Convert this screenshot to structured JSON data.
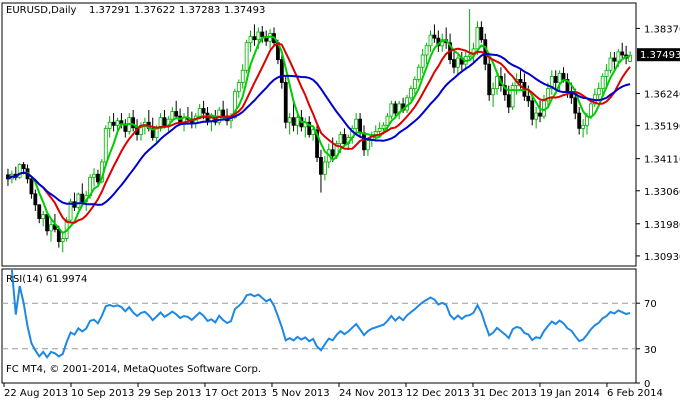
{
  "chart_data": [
    {
      "type": "candlestick",
      "symbol": "EURUSD,Daily",
      "ohlc_header": [
        "1.37291",
        "1.37622",
        "1.37283",
        "1.37493"
      ],
      "current_price_label": "1.37493",
      "y_ticks": [
        "1.38370",
        "1.37493",
        "1.36240",
        "1.35190",
        "1.34110",
        "1.33060",
        "1.31980",
        "1.30930"
      ],
      "ylim": [
        1.306,
        1.392
      ],
      "bars": 160,
      "candles": [
        [
          1.3358,
          1.3378,
          1.3322,
          1.3345
        ],
        [
          1.3345,
          1.3372,
          1.333,
          1.336
        ],
        [
          1.336,
          1.3385,
          1.334,
          1.335
        ],
        [
          1.335,
          1.3396,
          1.3345,
          1.3392
        ],
        [
          1.3392,
          1.34,
          1.336,
          1.3378
        ],
        [
          1.3378,
          1.3392,
          1.333,
          1.3345
        ],
        [
          1.3345,
          1.3352,
          1.328,
          1.3296
        ],
        [
          1.3296,
          1.331,
          1.324,
          1.326
        ],
        [
          1.326,
          1.3262,
          1.32,
          1.3215
        ],
        [
          1.3215,
          1.324,
          1.319,
          1.3228
        ],
        [
          1.3228,
          1.3235,
          1.316,
          1.3175
        ],
        [
          1.3175,
          1.321,
          1.314,
          1.3195
        ],
        [
          1.3195,
          1.323,
          1.317,
          1.318
        ],
        [
          1.318,
          1.3192,
          1.312,
          1.314
        ],
        [
          1.314,
          1.3165,
          1.3105,
          1.315
        ],
        [
          1.315,
          1.322,
          1.314,
          1.321
        ],
        [
          1.321,
          1.328,
          1.32,
          1.327
        ],
        [
          1.327,
          1.33,
          1.324,
          1.3252
        ],
        [
          1.3252,
          1.33,
          1.3245,
          1.3295
        ],
        [
          1.3295,
          1.333,
          1.326,
          1.327
        ],
        [
          1.327,
          1.3305,
          1.324,
          1.329
        ],
        [
          1.329,
          1.336,
          1.328,
          1.335
        ],
        [
          1.335,
          1.338,
          1.332,
          1.336
        ],
        [
          1.336,
          1.3375,
          1.332,
          1.3335
        ],
        [
          1.3335,
          1.341,
          1.333,
          1.34
        ],
        [
          1.34,
          1.352,
          1.339,
          1.351
        ],
        [
          1.351,
          1.355,
          1.348,
          1.353
        ],
        [
          1.353,
          1.356,
          1.35,
          1.352
        ],
        [
          1.352,
          1.3545,
          1.349,
          1.3535
        ],
        [
          1.3535,
          1.356,
          1.351,
          1.3525
        ],
        [
          1.3525,
          1.354,
          1.348,
          1.35
        ],
        [
          1.35,
          1.356,
          1.349,
          1.3545
        ],
        [
          1.3545,
          1.357,
          1.35,
          1.3512
        ],
        [
          1.3512,
          1.354,
          1.347,
          1.349
        ],
        [
          1.349,
          1.353,
          1.347,
          1.352
        ],
        [
          1.352,
          1.3545,
          1.349,
          1.353
        ],
        [
          1.353,
          1.357,
          1.35,
          1.351
        ],
        [
          1.351,
          1.3545,
          1.347,
          1.348
        ],
        [
          1.348,
          1.352,
          1.346,
          1.351
        ],
        [
          1.351,
          1.356,
          1.35,
          1.3545
        ],
        [
          1.3545,
          1.357,
          1.351,
          1.352
        ],
        [
          1.352,
          1.355,
          1.35,
          1.354
        ],
        [
          1.354,
          1.358,
          1.353,
          1.3565
        ],
        [
          1.3565,
          1.36,
          1.354,
          1.355
        ],
        [
          1.355,
          1.3575,
          1.352,
          1.353
        ],
        [
          1.353,
          1.356,
          1.35,
          1.3545
        ],
        [
          1.3545,
          1.358,
          1.353,
          1.354
        ],
        [
          1.354,
          1.3565,
          1.351,
          1.3525
        ],
        [
          1.3525,
          1.356,
          1.351,
          1.355
        ],
        [
          1.355,
          1.359,
          1.354,
          1.3575
        ],
        [
          1.3575,
          1.36,
          1.354,
          1.356
        ],
        [
          1.356,
          1.358,
          1.352,
          1.3535
        ],
        [
          1.3535,
          1.356,
          1.35,
          1.3545
        ],
        [
          1.3545,
          1.357,
          1.352,
          1.353
        ],
        [
          1.353,
          1.358,
          1.352,
          1.357
        ],
        [
          1.357,
          1.36,
          1.354,
          1.355
        ],
        [
          1.355,
          1.3575,
          1.352,
          1.3535
        ],
        [
          1.3535,
          1.356,
          1.351,
          1.3545
        ],
        [
          1.3545,
          1.364,
          1.354,
          1.363
        ],
        [
          1.363,
          1.367,
          1.361,
          1.366
        ],
        [
          1.366,
          1.372,
          1.364,
          1.37
        ],
        [
          1.37,
          1.38,
          1.369,
          1.379
        ],
        [
          1.379,
          1.383,
          1.376,
          1.381
        ],
        [
          1.381,
          1.385,
          1.378,
          1.38
        ],
        [
          1.38,
          1.384,
          1.377,
          1.3825
        ],
        [
          1.3825,
          1.3845,
          1.379,
          1.381
        ],
        [
          1.381,
          1.383,
          1.378,
          1.3795
        ],
        [
          1.3795,
          1.3835,
          1.377,
          1.382
        ],
        [
          1.382,
          1.384,
          1.378,
          1.379
        ],
        [
          1.379,
          1.38,
          1.372,
          1.3735
        ],
        [
          1.3735,
          1.375,
          1.364,
          1.366
        ],
        [
          1.366,
          1.368,
          1.351,
          1.353
        ],
        [
          1.353,
          1.356,
          1.349,
          1.3545
        ],
        [
          1.3545,
          1.36,
          1.35,
          1.352
        ],
        [
          1.352,
          1.356,
          1.349,
          1.3545
        ],
        [
          1.3545,
          1.357,
          1.35,
          1.3515
        ],
        [
          1.3515,
          1.3545,
          1.348,
          1.353
        ],
        [
          1.353,
          1.355,
          1.348,
          1.349
        ],
        [
          1.349,
          1.352,
          1.347,
          1.3505
        ],
        [
          1.3505,
          1.352,
          1.34,
          1.3415
        ],
        [
          1.3415,
          1.344,
          1.33,
          1.336
        ],
        [
          1.336,
          1.342,
          1.334,
          1.34
        ],
        [
          1.34,
          1.346,
          1.338,
          1.344
        ],
        [
          1.344,
          1.348,
          1.34,
          1.342
        ],
        [
          1.342,
          1.347,
          1.341,
          1.346
        ],
        [
          1.346,
          1.35,
          1.343,
          1.349
        ],
        [
          1.349,
          1.351,
          1.345,
          1.346
        ],
        [
          1.346,
          1.349,
          1.344,
          1.348
        ],
        [
          1.348,
          1.352,
          1.346,
          1.351
        ],
        [
          1.351,
          1.356,
          1.349,
          1.354
        ],
        [
          1.354,
          1.356,
          1.348,
          1.3495
        ],
        [
          1.3495,
          1.352,
          1.342,
          1.344
        ],
        [
          1.344,
          1.348,
          1.342,
          1.347
        ],
        [
          1.347,
          1.35,
          1.345,
          1.349
        ],
        [
          1.349,
          1.352,
          1.347,
          1.35
        ],
        [
          1.35,
          1.353,
          1.348,
          1.351
        ],
        [
          1.351,
          1.353,
          1.349,
          1.352
        ],
        [
          1.352,
          1.356,
          1.35,
          1.355
        ],
        [
          1.355,
          1.36,
          1.354,
          1.359
        ],
        [
          1.359,
          1.36,
          1.355,
          1.356
        ],
        [
          1.356,
          1.36,
          1.354,
          1.359
        ],
        [
          1.359,
          1.361,
          1.356,
          1.357
        ],
        [
          1.357,
          1.362,
          1.356,
          1.361
        ],
        [
          1.361,
          1.365,
          1.36,
          1.364
        ],
        [
          1.364,
          1.368,
          1.362,
          1.367
        ],
        [
          1.367,
          1.372,
          1.366,
          1.371
        ],
        [
          1.371,
          1.377,
          1.369,
          1.375
        ],
        [
          1.375,
          1.379,
          1.372,
          1.378
        ],
        [
          1.378,
          1.383,
          1.376,
          1.3815
        ],
        [
          1.3815,
          1.385,
          1.379,
          1.3805
        ],
        [
          1.3805,
          1.383,
          1.376,
          1.378
        ],
        [
          1.378,
          1.382,
          1.376,
          1.38
        ],
        [
          1.38,
          1.384,
          1.377,
          1.379
        ],
        [
          1.379,
          1.382,
          1.372,
          1.3735
        ],
        [
          1.3735,
          1.376,
          1.369,
          1.371
        ],
        [
          1.371,
          1.375,
          1.368,
          1.374
        ],
        [
          1.374,
          1.376,
          1.37,
          1.372
        ],
        [
          1.372,
          1.376,
          1.37,
          1.3745
        ],
        [
          1.3745,
          1.39,
          1.373,
          1.375
        ],
        [
          1.375,
          1.379,
          1.372,
          1.377
        ],
        [
          1.377,
          1.386,
          1.375,
          1.384
        ],
        [
          1.384,
          1.386,
          1.379,
          1.38
        ],
        [
          1.38,
          1.382,
          1.37,
          1.372
        ],
        [
          1.372,
          1.374,
          1.36,
          1.362
        ],
        [
          1.362,
          1.366,
          1.358,
          1.364
        ],
        [
          1.364,
          1.37,
          1.362,
          1.368
        ],
        [
          1.368,
          1.371,
          1.363,
          1.365
        ],
        [
          1.365,
          1.369,
          1.36,
          1.362
        ],
        [
          1.362,
          1.365,
          1.356,
          1.358
        ],
        [
          1.358,
          1.366,
          1.357,
          1.365
        ],
        [
          1.365,
          1.369,
          1.362,
          1.367
        ],
        [
          1.367,
          1.37,
          1.364,
          1.366
        ],
        [
          1.366,
          1.369,
          1.36,
          1.3615
        ],
        [
          1.3615,
          1.365,
          1.358,
          1.36
        ],
        [
          1.36,
          1.362,
          1.352,
          1.354
        ],
        [
          1.354,
          1.358,
          1.351,
          1.356
        ],
        [
          1.356,
          1.36,
          1.353,
          1.355
        ],
        [
          1.355,
          1.362,
          1.354,
          1.36
        ],
        [
          1.36,
          1.366,
          1.358,
          1.364
        ],
        [
          1.364,
          1.37,
          1.362,
          1.368
        ],
        [
          1.368,
          1.37,
          1.364,
          1.366
        ],
        [
          1.366,
          1.37,
          1.363,
          1.369
        ],
        [
          1.369,
          1.371,
          1.366,
          1.367
        ],
        [
          1.367,
          1.369,
          1.361,
          1.363
        ],
        [
          1.363,
          1.366,
          1.359,
          1.361
        ],
        [
          1.361,
          1.364,
          1.354,
          1.356
        ],
        [
          1.356,
          1.358,
          1.349,
          1.351
        ],
        [
          1.351,
          1.354,
          1.348,
          1.352
        ],
        [
          1.352,
          1.356,
          1.349,
          1.355
        ],
        [
          1.355,
          1.36,
          1.354,
          1.359
        ],
        [
          1.359,
          1.364,
          1.358,
          1.362
        ],
        [
          1.362,
          1.366,
          1.36,
          1.364
        ],
        [
          1.364,
          1.369,
          1.362,
          1.368
        ],
        [
          1.368,
          1.372,
          1.365,
          1.37
        ],
        [
          1.37,
          1.376,
          1.369,
          1.374
        ],
        [
          1.374,
          1.376,
          1.37,
          1.373
        ],
        [
          1.373,
          1.377,
          1.371,
          1.376
        ],
        [
          1.376,
          1.379,
          1.374,
          1.375
        ],
        [
          1.375,
          1.378,
          1.372,
          1.374
        ],
        [
          1.3729,
          1.3762,
          1.3728,
          1.3749
        ]
      ],
      "indicators": [
        {
          "color": "#00cc00",
          "period": 5
        },
        {
          "color": "#dd0000",
          "period": 10
        },
        {
          "color": "#0000cc",
          "period": 20
        }
      ]
    },
    {
      "type": "line",
      "label": "RSI(14) 61.9974",
      "y_ticks": [
        "70",
        "30",
        "0"
      ],
      "levels": [
        70,
        30
      ],
      "ylim": [
        0,
        100
      ],
      "color": "#1e88e5"
    }
  ],
  "watermark": "FC MT4, © 2001-2014, MetaQuotes Software Corp.",
  "x_labels": [
    "22 Aug 2013",
    "10 Sep 2013",
    "29 Sep 2013",
    "17 Oct 2013",
    "5 Nov 2013",
    "24 Nov 2013",
    "12 Dec 2013",
    "31 Dec 2013",
    "19 Jan 2014",
    "6 Feb 2014"
  ],
  "colors": {
    "up": "#00b000",
    "down": "#000000",
    "axis": "#000000",
    "grid_level": "#9a9a9a"
  }
}
